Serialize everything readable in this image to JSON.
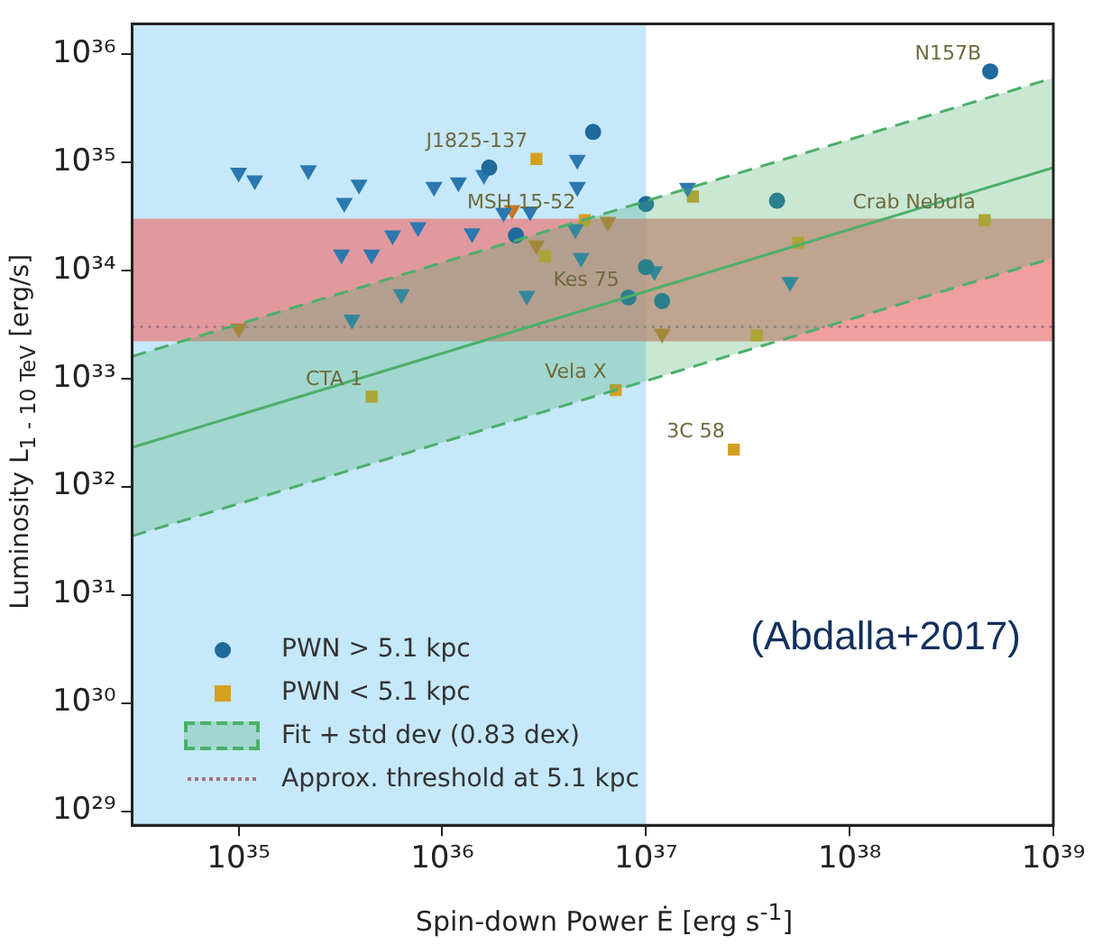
{
  "chart_data": {
    "type": "scatter",
    "xlabel": "Spin-down Power Ė [erg s$^{-1}$]",
    "ylabel": "Luminosity L$_{1 - 10 TeV}$ [erg/s]",
    "log": "xy",
    "grid": false,
    "legend": "bottom left",
    "xlim": [
      3e+34,
      1e+39
    ],
    "ylim": [
      7.4e+28,
      1.9e+36
    ],
    "xticks": [
      {
        "value": 1e+35,
        "label": "10³⁵"
      },
      {
        "value": 1e+36,
        "label": "10³⁶"
      },
      {
        "value": 1e+37,
        "label": "10³⁷"
      },
      {
        "value": 1e+38,
        "label": "10³⁸"
      },
      {
        "value": 1e+39,
        "label": "10³⁹"
      }
    ],
    "yticks": [
      {
        "value": 1e+29,
        "label": "10²⁹"
      },
      {
        "value": 1e+30,
        "label": "10³⁰"
      },
      {
        "value": 1e+31,
        "label": "10³¹"
      },
      {
        "value": 1e+32,
        "label": "10³²"
      },
      {
        "value": 1e+33,
        "label": "10³³"
      },
      {
        "value": 1e+34,
        "label": "10³⁴"
      },
      {
        "value": 1e+35,
        "label": "10³⁵"
      },
      {
        "value": 1e+36,
        "label": "10³⁶"
      }
    ],
    "bands": [
      {
        "axis": "x",
        "from": 3e+34,
        "to": 1e+37,
        "color": "#c6e8fb"
      },
      {
        "axis": "y",
        "from": 2.2e+33,
        "to": 3e+34,
        "color": "#ec7a7a"
      }
    ],
    "ref_lines": [
      {
        "axis": "y",
        "value": 3e+33,
        "label": "Approx. threshold at 5.1 kpc",
        "color": "#a07080",
        "line_style": "dotted"
      }
    ],
    "series": [
      {
        "type": "line",
        "name": "Fit + std dev (0.83 dex)",
        "color": "#4caf6a",
        "x": [
          3e+34,
          1e+39
        ],
        "values": [
          2.3e+32,
          8.9e+34
        ],
        "lower": [
          3.5e+31,
          1.3e+34
        ],
        "upper": [
          1.6e+33,
          6e+35
        ]
      },
      {
        "type": "line",
        "color": "#4caf6a",
        "line_style": "dashed",
        "x": [
          3e+34,
          1e+39
        ],
        "values": [
          1.6e+33,
          6e+35
        ]
      },
      {
        "type": "line",
        "color": "#4caf6a",
        "line_style": "dashed",
        "x": [
          3e+34,
          1e+39
        ],
        "values": [
          3.5e+31,
          1.3e+34
        ]
      },
      {
        "name": "PWN > 5.1 kpc",
        "color": "#1f6a9c",
        "marker": "circle",
        "x": [
          5.5e+36,
          1.7e+36,
          4.9e+38,
          1e+37,
          4.4e+37,
          1e+37,
          8.2e+36,
          1.2e+37,
          2.3e+36
        ],
        "values": [
          1.9e+35,
          8.9e+34,
          6.9e+35,
          4.1e+34,
          4.4e+34,
          1.07e+34,
          5.6e+33,
          5.2e+33,
          2.1e+34
        ]
      },
      {
        "color": "#2a78b0",
        "marker": "triangle",
        "x": [
          1e+35,
          1.2e+35,
          2.2e+35,
          3.9e+35,
          3.3e+35,
          9.1e+35,
          1.2e+36,
          1.6e+36,
          4.6e+36,
          4.6e+36,
          2e+36,
          2.7e+36,
          1.6e+37,
          5.7e+35,
          7.6e+35,
          3.2e+35,
          4.5e+35,
          1.4e+36,
          6.3e+35,
          2.6e+36,
          3.6e+35,
          4.5e+36,
          4.8e+36,
          5.1e+37,
          1.1e+37
        ],
        "values": [
          8e+34,
          6.8e+34,
          8.4e+34,
          6.2e+34,
          4.2e+34,
          5.9e+34,
          6.5e+34,
          7.6e+34,
          1.05e+35,
          5.9e+34,
          3.4e+34,
          3.5e+34,
          5.8e+34,
          2.1e+34,
          2.5e+34,
          1.4e+34,
          1.4e+34,
          2.2e+34,
          6e+33,
          5.8e+33,
          3.5e+33,
          2.4e+34,
          1.3e+34,
          7.8e+33,
          9.8e+33
        ]
      },
      {
        "name": "PWN < 5.1 kpc",
        "color": "#d4a020",
        "marker": "square",
        "x": [
          2.9e+36,
          5e+36,
          3.2e+36,
          4.5e+35,
          7.1e+36,
          2.7e+37,
          1.7e+37,
          4.6e+38,
          5.6e+37,
          3.5e+37
        ],
        "values": [
          1.07e+35,
          2.9e+34,
          1.35e+34,
          6.8e+32,
          7.8e+32,
          2.2e+32,
          4.8e+34,
          2.9e+34,
          1.8e+34,
          2.5e+33
        ]
      },
      {
        "color": "#c8782a",
        "marker": "triangle",
        "x": [
          1e+35,
          2.2e+36,
          2.9e+36,
          6.5e+36,
          1.2e+37
        ],
        "values": [
          2.9e+33,
          3.6e+34,
          1.7e+34,
          2.8e+34,
          2.6e+33
        ]
      }
    ],
    "annotations": [
      {
        "text": "N157B",
        "x": 4.9e+38,
        "y": 6.9e+35
      },
      {
        "text": "J1825-137",
        "x": 2.9e+36,
        "y": 1.07e+35
      },
      {
        "text": "MSH 15-52",
        "x": 5e+36,
        "y": 2.9e+34
      },
      {
        "text": "Crab Nebula",
        "x": 4.6e+38,
        "y": 2.9e+34
      },
      {
        "text": "Kes 75",
        "x": 8.2e+36,
        "y": 5.6e+33
      },
      {
        "text": "CTA 1",
        "x": 4.5e+35,
        "y": 6.8e+32
      },
      {
        "text": "Vela X",
        "x": 7.1e+36,
        "y": 7.8e+32
      },
      {
        "text": "3C 58",
        "x": 2.7e+37,
        "y": 2.2e+32
      },
      "(Abdalla+2017)"
    ]
  }
}
